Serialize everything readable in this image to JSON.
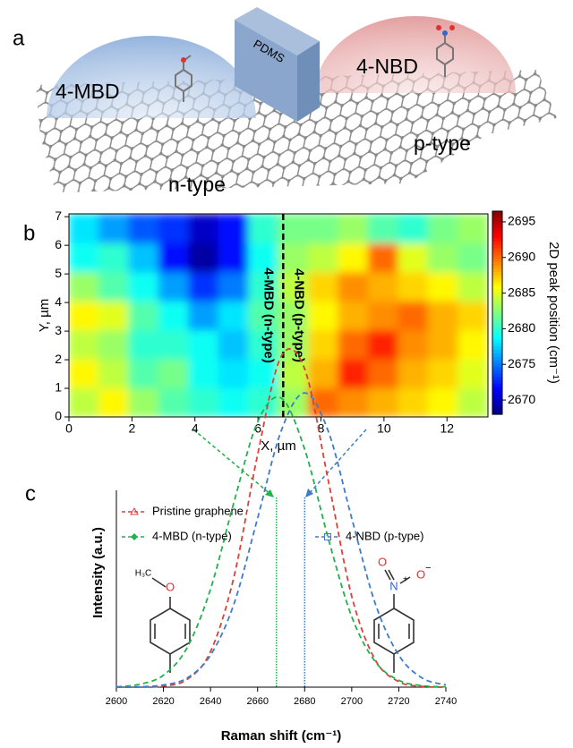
{
  "panel_a": {
    "label": "a",
    "left_dome": "4-MBD",
    "right_dome": "4-NBD",
    "barrier": "PDMS",
    "left_type": "n-type",
    "right_type": "p-type"
  },
  "chart_data": [
    {
      "type": "heatmap",
      "panel_label": "b",
      "xlabel": "X, µm",
      "ylabel": "Y, µm",
      "xlim": [
        0,
        13.3
      ],
      "ylim": [
        0,
        7.1
      ],
      "xticks": [
        0,
        2,
        4,
        6,
        8,
        10,
        12
      ],
      "yticks": [
        0,
        1,
        2,
        3,
        4,
        5,
        6,
        7
      ],
      "colormap": "jet",
      "clim": [
        2668,
        2696.5
      ],
      "colorbar_ticks": [
        2670,
        2675,
        2680,
        2685,
        2690,
        2695
      ],
      "colorbar_label": "2D peak position (cm⁻¹)",
      "z": [
        [
          2684,
          2686,
          2683,
          2681,
          2680,
          2679,
          2680,
          2683,
          2690,
          2689,
          2688,
          2687,
          2686,
          2684
        ],
        [
          2686,
          2684,
          2681,
          2682,
          2679,
          2678,
          2679,
          2684,
          2688,
          2692,
          2690,
          2688,
          2687,
          2685
        ],
        [
          2684,
          2683,
          2680,
          2680,
          2679,
          2677,
          2680,
          2683,
          2687,
          2690,
          2692,
          2689,
          2688,
          2686
        ],
        [
          2686,
          2685,
          2681,
          2679,
          2676,
          2678,
          2681,
          2683,
          2686,
          2688,
          2689,
          2690,
          2688,
          2687
        ],
        [
          2683,
          2681,
          2679,
          2676,
          2673,
          2675,
          2680,
          2684,
          2687,
          2689,
          2688,
          2687,
          2686,
          2684
        ],
        [
          2679,
          2680,
          2677,
          2672,
          2669,
          2672,
          2679,
          2683,
          2684,
          2686,
          2690,
          2685,
          2683,
          2682
        ],
        [
          2678,
          2676,
          2674,
          2673,
          2670,
          2672,
          2680,
          2682,
          2682,
          2683,
          2681,
          2680,
          2682,
          2683
        ]
      ],
      "divider": {
        "x": 6.8,
        "left_label": "4-MBD (n-type)",
        "right_label": "4-NBD (p-type)"
      }
    },
    {
      "type": "line",
      "panel_label": "c",
      "xlabel": "Raman shift (cm⁻¹)",
      "ylabel": "Intensity (a.u.)",
      "xlim": [
        2600,
        2740
      ],
      "ylim": [
        0,
        100
      ],
      "xticks": [
        2600,
        2620,
        2640,
        2660,
        2680,
        2700,
        2720,
        2740
      ],
      "x": [
        2600,
        2610,
        2620,
        2630,
        2640,
        2650,
        2660,
        2670,
        2680,
        2690,
        2700,
        2710,
        2720,
        2730,
        2740
      ],
      "series": [
        {
          "name": "Pristine graphene",
          "color": "#d9413a",
          "marker": "triangle",
          "values": [
            0,
            0,
            0.3,
            2.1,
            9.8,
            30.5,
            64,
            91,
            87.6,
            57,
            25,
            7.5,
            1.5,
            0.2,
            0
          ]
        },
        {
          "name": "4-MBD (n-type)",
          "color": "#22b14c",
          "marker": "diamond",
          "values": [
            0.1,
            0.8,
            3.3,
            10.8,
            27,
            51,
            73,
            79.6,
            65.5,
            41,
            19.4,
            7,
            1.9,
            0.4,
            0.1
          ]
        },
        {
          "name": "4-NBD (p-type)",
          "color": "#3d7cc9",
          "marker": "square",
          "values": [
            0,
            0.1,
            0.6,
            2.5,
            8.8,
            23,
            46.5,
            70.5,
            81,
            70.5,
            46.5,
            23,
            8.8,
            2.5,
            0.6
          ]
        }
      ],
      "vlines": [
        {
          "x": 2668,
          "color": "#22b14c"
        },
        {
          "x": 2680,
          "color": "#3d7cc9"
        }
      ],
      "left_molecule": {
        "methyl": "H₃C",
        "oxygen": "O"
      },
      "right_molecule": {
        "nitrogen": "N",
        "n_charge": "+",
        "oxygen_top": "O",
        "oxygen_right": "O",
        "o_charge": "−"
      }
    }
  ]
}
